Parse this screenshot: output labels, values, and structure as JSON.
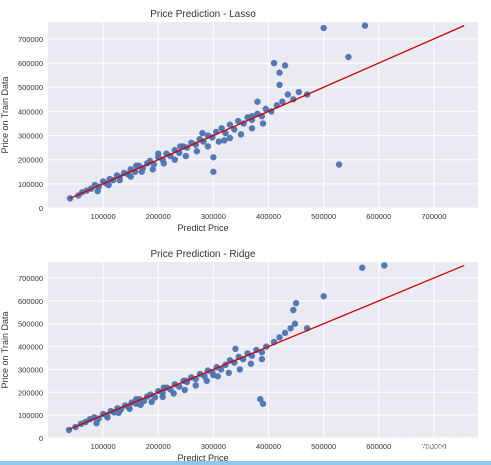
{
  "watermark": "知乎 @赣启方",
  "chart_data": [
    {
      "type": "scatter",
      "title": "Price Prediction - Lasso",
      "xlabel": "Predict Price",
      "ylabel": "Price on Train Data",
      "xlim": [
        0,
        780000
      ],
      "ylim": [
        0,
        770000
      ],
      "xticks": [
        100000,
        200000,
        300000,
        400000,
        500000,
        600000,
        700000
      ],
      "yticks": [
        0,
        100000,
        200000,
        300000,
        400000,
        500000,
        600000,
        700000
      ],
      "grid": true,
      "series": [
        {
          "marker_color": "#4c72b0",
          "x": [
            40000,
            55000,
            62000,
            70000,
            78000,
            85000,
            92000,
            100000,
            105000,
            112000,
            118000,
            125000,
            130000,
            138000,
            145000,
            150000,
            158000,
            165000,
            172000,
            180000,
            185000,
            192000,
            200000,
            208000,
            215000,
            222000,
            230000,
            238000,
            245000,
            252000,
            260000,
            268000,
            275000,
            282000,
            290000,
            298000,
            305000,
            315000,
            322000,
            330000,
            338000,
            345000,
            355000,
            362000,
            370000,
            380000,
            388000,
            395000,
            405000,
            415000,
            425000,
            435000,
            445000,
            455000,
            470000,
            90000,
            110000,
            130000,
            150000,
            170000,
            190000,
            210000,
            230000,
            250000,
            270000,
            290000,
            310000,
            330000,
            350000,
            370000,
            390000,
            160000,
            200000,
            240000,
            280000,
            320000,
            420000,
            300000,
            430000,
            420000,
            380000,
            500000,
            545000,
            528000,
            575000,
            300000,
            370000,
            410000
          ],
          "y": [
            40000,
            52000,
            65000,
            72000,
            80000,
            95000,
            88000,
            110000,
            102000,
            120000,
            115000,
            135000,
            128000,
            145000,
            140000,
            160000,
            150000,
            175000,
            165000,
            185000,
            195000,
            180000,
            210000,
            200000,
            225000,
            215000,
            240000,
            228000,
            255000,
            250000,
            270000,
            262000,
            285000,
            275000,
            300000,
            292000,
            315000,
            330000,
            310000,
            345000,
            325000,
            360000,
            350000,
            375000,
            365000,
            390000,
            380000,
            410000,
            400000,
            425000,
            440000,
            470000,
            450000,
            480000,
            470000,
            70000,
            95000,
            115000,
            130000,
            150000,
            160000,
            185000,
            200000,
            215000,
            235000,
            255000,
            275000,
            290000,
            305000,
            330000,
            350000,
            175000,
            225000,
            255000,
            310000,
            280000,
            560000,
            150000,
            590000,
            510000,
            440000,
            745000,
            625000,
            180000,
            755000,
            210000,
            380000,
            600000
          ]
        }
      ],
      "reference_line": {
        "from": [
          40000,
          40000
        ],
        "to": [
          755000,
          755000
        ],
        "color": "#cc0000"
      }
    },
    {
      "type": "scatter",
      "title": "Price Prediction - Ridge",
      "xlabel": "Predict Price",
      "ylabel": "Price on Train Data",
      "xlim": [
        0,
        780000
      ],
      "ylim": [
        0,
        770000
      ],
      "xticks": [
        100000,
        200000,
        300000,
        400000,
        500000,
        600000,
        700000
      ],
      "yticks": [
        0,
        100000,
        200000,
        300000,
        400000,
        500000,
        600000,
        700000
      ],
      "grid": true,
      "series": [
        {
          "marker_color": "#4c72b0",
          "x": [
            38000,
            50000,
            60000,
            68000,
            76000,
            84000,
            92000,
            100000,
            106000,
            114000,
            120000,
            126000,
            132000,
            140000,
            146000,
            152000,
            160000,
            166000,
            174000,
            180000,
            186000,
            194000,
            200000,
            208000,
            216000,
            222000,
            230000,
            238000,
            246000,
            252000,
            260000,
            268000,
            276000,
            284000,
            290000,
            298000,
            306000,
            314000,
            322000,
            330000,
            338000,
            346000,
            354000,
            362000,
            370000,
            378000,
            388000,
            396000,
            410000,
            420000,
            430000,
            440000,
            448000,
            470000,
            88000,
            108000,
            128000,
            148000,
            168000,
            188000,
            208000,
            228000,
            248000,
            268000,
            288000,
            308000,
            328000,
            348000,
            368000,
            388000,
            160000,
            210000,
            250000,
            300000,
            340000,
            385000,
            390000,
            450000,
            445000,
            500000,
            570000,
            610000
          ],
          "y": [
            35000,
            48000,
            62000,
            70000,
            82000,
            90000,
            85000,
            105000,
            100000,
            118000,
            112000,
            130000,
            125000,
            142000,
            138000,
            155000,
            150000,
            170000,
            162000,
            182000,
            190000,
            178000,
            205000,
            198000,
            220000,
            212000,
            235000,
            225000,
            250000,
            245000,
            265000,
            258000,
            280000,
            270000,
            295000,
            288000,
            310000,
            300000,
            320000,
            340000,
            330000,
            355000,
            345000,
            370000,
            360000,
            385000,
            375000,
            400000,
            420000,
            440000,
            460000,
            480000,
            500000,
            480000,
            65000,
            90000,
            110000,
            128000,
            145000,
            158000,
            180000,
            195000,
            210000,
            230000,
            250000,
            270000,
            285000,
            300000,
            325000,
            345000,
            170000,
            220000,
            250000,
            275000,
            390000,
            170000,
            150000,
            590000,
            560000,
            620000,
            745000,
            755000
          ]
        }
      ],
      "reference_line": {
        "from": [
          38000,
          38000
        ],
        "to": [
          755000,
          755000
        ],
        "color": "#cc0000"
      }
    }
  ]
}
